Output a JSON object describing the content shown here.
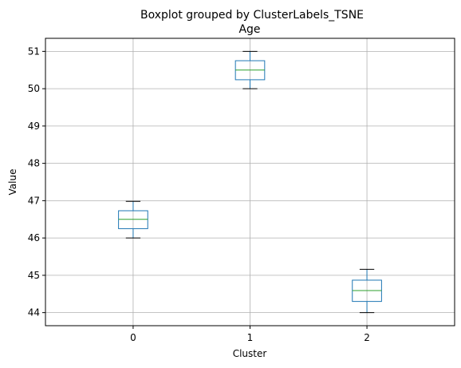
{
  "chart_data": {
    "type": "boxplot",
    "suptitle": "Boxplot grouped by ClusterLabels_TSNE",
    "title": "Age",
    "xlabel": "Cluster",
    "ylabel": "Value",
    "categories": [
      "0",
      "1",
      "2"
    ],
    "boxes": [
      {
        "category": "0",
        "whisker_low": 46.0,
        "q1": 46.25,
        "median": 46.5,
        "q3": 46.73,
        "whisker_high": 46.98
      },
      {
        "category": "1",
        "whisker_low": 50.0,
        "q1": 50.24,
        "median": 50.5,
        "q3": 50.75,
        "whisker_high": 51.0
      },
      {
        "category": "2",
        "whisker_low": 44.0,
        "q1": 44.3,
        "median": 44.59,
        "q3": 44.87,
        "whisker_high": 45.16
      }
    ],
    "yticks": [
      44,
      45,
      46,
      47,
      48,
      49,
      50,
      51
    ],
    "ylim": [
      43.65,
      51.35
    ],
    "grid": true,
    "colors": {
      "box": "#1f77b4",
      "median": "#2ca02c",
      "whisker": "#000000",
      "grid": "#b0b0b0"
    }
  }
}
